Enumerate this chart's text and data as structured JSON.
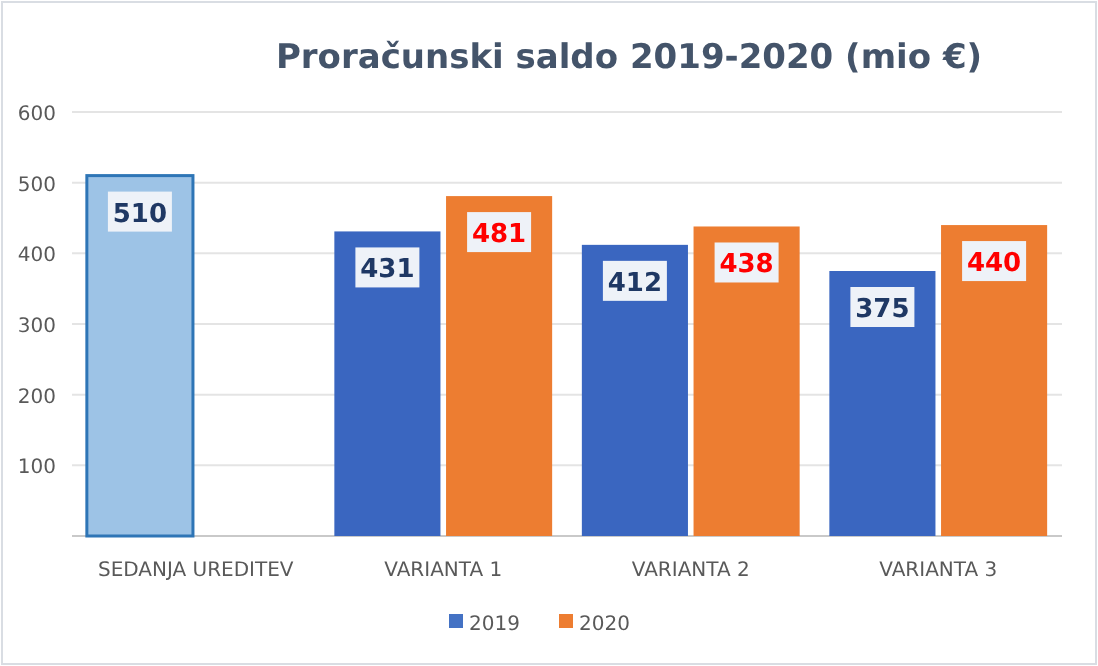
{
  "chart_data": {
    "type": "bar",
    "title": "Proračunski saldo 2019-2020 (mio €)",
    "categories": [
      "SEDANJA UREDITEV",
      "VARIANTA 1",
      "VARIANTA 2",
      "VARIANTA 3"
    ],
    "series": [
      {
        "name": "2019",
        "color": "#4472c4",
        "colors": [
          "#9dc3e6",
          "#3a66c0",
          "#3a66c0",
          "#3a66c0"
        ],
        "values": [
          510,
          431,
          412,
          375
        ]
      },
      {
        "name": "2020",
        "color": "#ed7d31",
        "values": [
          null,
          481,
          438,
          440
        ]
      }
    ],
    "ylim": [
      0,
      600
    ],
    "yticks": [
      {
        "value": 0,
        "label": null
      },
      100,
      200,
      300,
      400,
      500,
      600
    ],
    "grid": "y",
    "legend": "bottom",
    "data_labels": true
  }
}
